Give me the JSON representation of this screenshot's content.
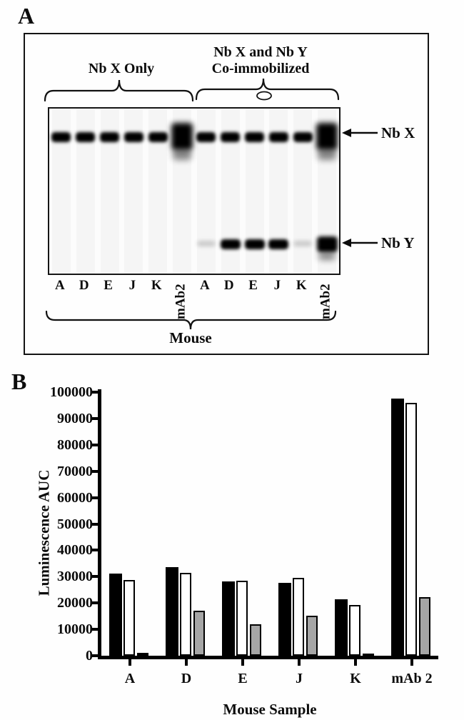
{
  "panel_a": {
    "label": "A",
    "headers": {
      "left": "Nb X Only",
      "right_line1": "Nb X and Nb Y",
      "right_line2": "Co-immobilized"
    },
    "band_markers": [
      {
        "name": "Nb X"
      },
      {
        "name": "Nb Y"
      }
    ],
    "bottom_label": "Mouse",
    "lanes": [
      {
        "label": "A",
        "label_orientation": "horizontal",
        "nbx_band": "strong",
        "nby_band": "none"
      },
      {
        "label": "D",
        "label_orientation": "horizontal",
        "nbx_band": "strong",
        "nby_band": "none"
      },
      {
        "label": "E",
        "label_orientation": "horizontal",
        "nbx_band": "strong",
        "nby_band": "none"
      },
      {
        "label": "J",
        "label_orientation": "horizontal",
        "nbx_band": "strong",
        "nby_band": "none"
      },
      {
        "label": "K",
        "label_orientation": "horizontal",
        "nbx_band": "strong",
        "nby_band": "none"
      },
      {
        "label": "mAb2",
        "label_orientation": "vertical",
        "nbx_band": "smear",
        "nby_band": "none"
      },
      {
        "label": "A",
        "label_orientation": "horizontal",
        "nbx_band": "strong",
        "nby_band": "faint"
      },
      {
        "label": "D",
        "label_orientation": "horizontal",
        "nbx_band": "strong",
        "nby_band": "strong"
      },
      {
        "label": "E",
        "label_orientation": "horizontal",
        "nbx_band": "strong",
        "nby_band": "strong"
      },
      {
        "label": "J",
        "label_orientation": "horizontal",
        "nbx_band": "strong",
        "nby_band": "strong"
      },
      {
        "label": "K",
        "label_orientation": "horizontal",
        "nbx_band": "strong",
        "nby_band": "faint"
      },
      {
        "label": "mAb2",
        "label_orientation": "vertical",
        "nbx_band": "smear",
        "nby_band": "smear"
      }
    ]
  },
  "panel_b": {
    "label": "B"
  },
  "chart_data": {
    "type": "bar",
    "categories": [
      "A",
      "D",
      "E",
      "J",
      "K",
      "mAb 2"
    ],
    "series": [
      {
        "name": "black bars",
        "fill": "#000000",
        "values": [
          31200,
          33600,
          28100,
          27600,
          21400,
          97500
        ]
      },
      {
        "name": "white bars",
        "fill": "#ffffff",
        "values": [
          28600,
          31400,
          28400,
          29500,
          19200,
          95800
        ]
      },
      {
        "name": "gray bars",
        "fill": "#a6a6a6",
        "values": [
          1000,
          17200,
          11900,
          15100,
          900,
          22200
        ]
      }
    ],
    "title": "",
    "xlabel": "Mouse Sample",
    "ylabel": "Luminescence AUC",
    "ylim": [
      0,
      100000
    ],
    "yticks": [
      0,
      10000,
      20000,
      30000,
      40000,
      50000,
      60000,
      70000,
      80000,
      90000,
      100000
    ],
    "grid": false,
    "legend": "none"
  }
}
